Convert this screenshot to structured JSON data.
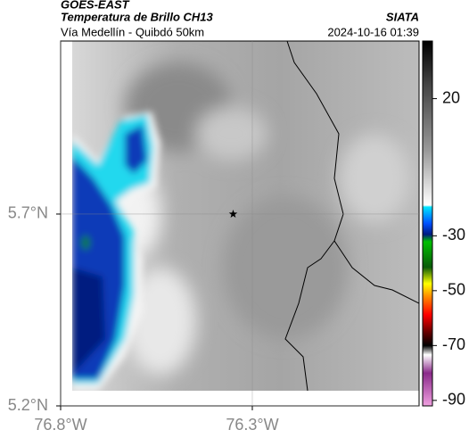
{
  "header": {
    "title": "GOES-EAST",
    "subtitle": "Temperatura de Brillo CH13",
    "source": "SIATA",
    "region": "Vía Medellín - Quibdó 50km",
    "datetime": "2024-10-16 01:39"
  },
  "map": {
    "xlim": [
      -76.8,
      -75.865
    ],
    "ylim": [
      5.2,
      6.151
    ],
    "xticks": [
      {
        "value": -76.8,
        "label": "76.8°W"
      },
      {
        "value": -76.3,
        "label": "76.3°W"
      }
    ],
    "yticks": [
      {
        "value": 5.2,
        "label": "5.2°N"
      },
      {
        "value": 5.7,
        "label": "5.7°N"
      }
    ],
    "grid": true,
    "marker": {
      "lon": -76.35,
      "lat": 5.7
    }
  },
  "colorbar": {
    "lim": [
      -92,
      41
    ],
    "ticks": [
      20,
      -30,
      -50,
      -70,
      -90
    ]
  }
}
